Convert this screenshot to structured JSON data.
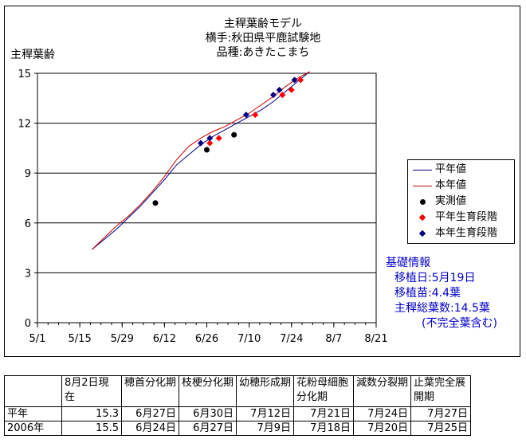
{
  "chart_data": {
    "type": "line",
    "title_lines": [
      "主稈葉齢モデル",
      "横手:秋田県平鹿試験地",
      "品種:あきたこまち"
    ],
    "ylabel": "主稈葉齢",
    "ylim": [
      0,
      15
    ],
    "yticks": [
      "0",
      "3",
      "6",
      "9",
      "12",
      "15"
    ],
    "xlim_days": [
      0,
      112
    ],
    "xticks": [
      {
        "label": "5/1",
        "day": 0
      },
      {
        "label": "5/15",
        "day": 14
      },
      {
        "label": "5/29",
        "day": 28
      },
      {
        "label": "6/12",
        "day": 42
      },
      {
        "label": "6/26",
        "day": 56
      },
      {
        "label": "7/10",
        "day": 70
      },
      {
        "label": "7/24",
        "day": 84
      },
      {
        "label": "8/7",
        "day": 98
      },
      {
        "label": "8/21",
        "day": 112
      }
    ],
    "grid": "horizontal",
    "series": [
      {
        "name": "平年値",
        "kind": "line",
        "color": "#000080",
        "points": [
          [
            18,
            4.4
          ],
          [
            22,
            5.0
          ],
          [
            26,
            5.6
          ],
          [
            30,
            6.3
          ],
          [
            34,
            7.0
          ],
          [
            38,
            7.8
          ],
          [
            42,
            8.6
          ],
          [
            46,
            9.5
          ],
          [
            50,
            10.1
          ],
          [
            54,
            10.7
          ],
          [
            58,
            11.2
          ],
          [
            62,
            11.6
          ],
          [
            66,
            12.0
          ],
          [
            70,
            12.4
          ],
          [
            74,
            12.8
          ],
          [
            78,
            13.3
          ],
          [
            82,
            13.9
          ],
          [
            86,
            14.5
          ],
          [
            90,
            15.1
          ]
        ]
      },
      {
        "name": "本年値",
        "kind": "line",
        "color": "#cc0000",
        "points": [
          [
            18,
            4.4
          ],
          [
            22,
            5.1
          ],
          [
            26,
            5.8
          ],
          [
            30,
            6.4
          ],
          [
            34,
            7.1
          ],
          [
            38,
            7.9
          ],
          [
            42,
            8.8
          ],
          [
            46,
            9.8
          ],
          [
            50,
            10.6
          ],
          [
            54,
            11.1
          ],
          [
            58,
            11.5
          ],
          [
            62,
            11.8
          ],
          [
            66,
            12.2
          ],
          [
            70,
            12.6
          ],
          [
            74,
            13.1
          ],
          [
            78,
            13.6
          ],
          [
            82,
            14.2
          ],
          [
            86,
            14.7
          ],
          [
            90,
            15.1
          ]
        ]
      },
      {
        "name": "実測値",
        "kind": "point",
        "color": "#000000",
        "shape": "circle",
        "points": [
          [
            39,
            7.2
          ],
          [
            56,
            10.4
          ],
          [
            65,
            11.3
          ]
        ]
      },
      {
        "name": "平年生育段階",
        "kind": "point",
        "color": "#ff0000",
        "shape": "diamond",
        "points": [
          [
            57,
            10.8
          ],
          [
            60,
            11.1
          ],
          [
            72,
            12.5
          ],
          [
            81,
            13.7
          ],
          [
            84,
            14.0
          ],
          [
            87,
            14.6
          ]
        ]
      },
      {
        "name": "本年生育段階",
        "kind": "point",
        "color": "#000080",
        "shape": "diamond",
        "points": [
          [
            54,
            10.8
          ],
          [
            57,
            11.1
          ],
          [
            69,
            12.5
          ],
          [
            78,
            13.7
          ],
          [
            80,
            14.0
          ],
          [
            85,
            14.6
          ]
        ]
      }
    ],
    "legend_position": "right"
  },
  "info": {
    "heading": "基礎情報",
    "lines": [
      "移植日:5月19日",
      "移植苗:4.4葉",
      "主稈総葉数:14.5葉",
      "(不完全葉含む)"
    ]
  },
  "table": {
    "headers": [
      "",
      "8月2日現在",
      "穂首分化期",
      "枝梗分化期",
      "幼穂形成期",
      "花粉母細胞分化期",
      "減数分裂期",
      "止葉完全展開期"
    ],
    "rows": [
      [
        "平年",
        "15.3",
        "6月27日",
        "6月30日",
        "7月12日",
        "7月21日",
        "7月24日",
        "7月27日"
      ],
      [
        "2006年",
        "15.5",
        "6月24日",
        "6月27日",
        "7月9日",
        "7月18日",
        "7月20日",
        "7月25日"
      ]
    ]
  }
}
